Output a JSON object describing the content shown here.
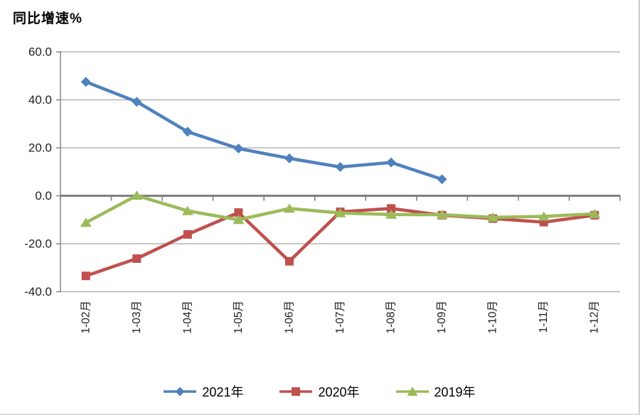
{
  "chart_data": {
    "type": "line",
    "title": "同比增速%",
    "categories": [
      "1-02月",
      "1-03月",
      "1-04月",
      "1-05月",
      "1-06月",
      "1-07月",
      "1-08月",
      "1-09月",
      "1-10月",
      "1-11月",
      "1-12月"
    ],
    "series": [
      {
        "name": "2021年",
        "marker": "diamond",
        "color": "#4f81bd",
        "values": [
          47.5,
          39.2,
          26.7,
          19.7,
          15.6,
          12.0,
          13.9,
          6.9,
          null,
          null,
          null
        ]
      },
      {
        "name": "2020年",
        "marker": "square",
        "color": "#c0504d",
        "values": [
          -33.4,
          -26.2,
          -16.1,
          -7.0,
          -27.3,
          -6.7,
          -5.3,
          -8.1,
          -9.5,
          -11.0,
          -8.1
        ]
      },
      {
        "name": "2019年",
        "marker": "triangle",
        "color": "#9bbb59",
        "values": [
          -11.2,
          0.1,
          -6.3,
          -10.0,
          -5.3,
          -7.2,
          -7.8,
          -7.9,
          -9.0,
          -8.6,
          -7.5
        ]
      }
    ],
    "ylim": [
      -40,
      60
    ],
    "ytick_step": 20,
    "ytick_labels": [
      "60.0",
      "40.0",
      "20.0",
      "0.0",
      "-20.0",
      "-40.0"
    ],
    "grid": true,
    "legend_position": "bottom",
    "colors": {
      "gridline": "#a6a6a6",
      "axis": "#808080",
      "tick_text": "#1f1f1f"
    }
  }
}
